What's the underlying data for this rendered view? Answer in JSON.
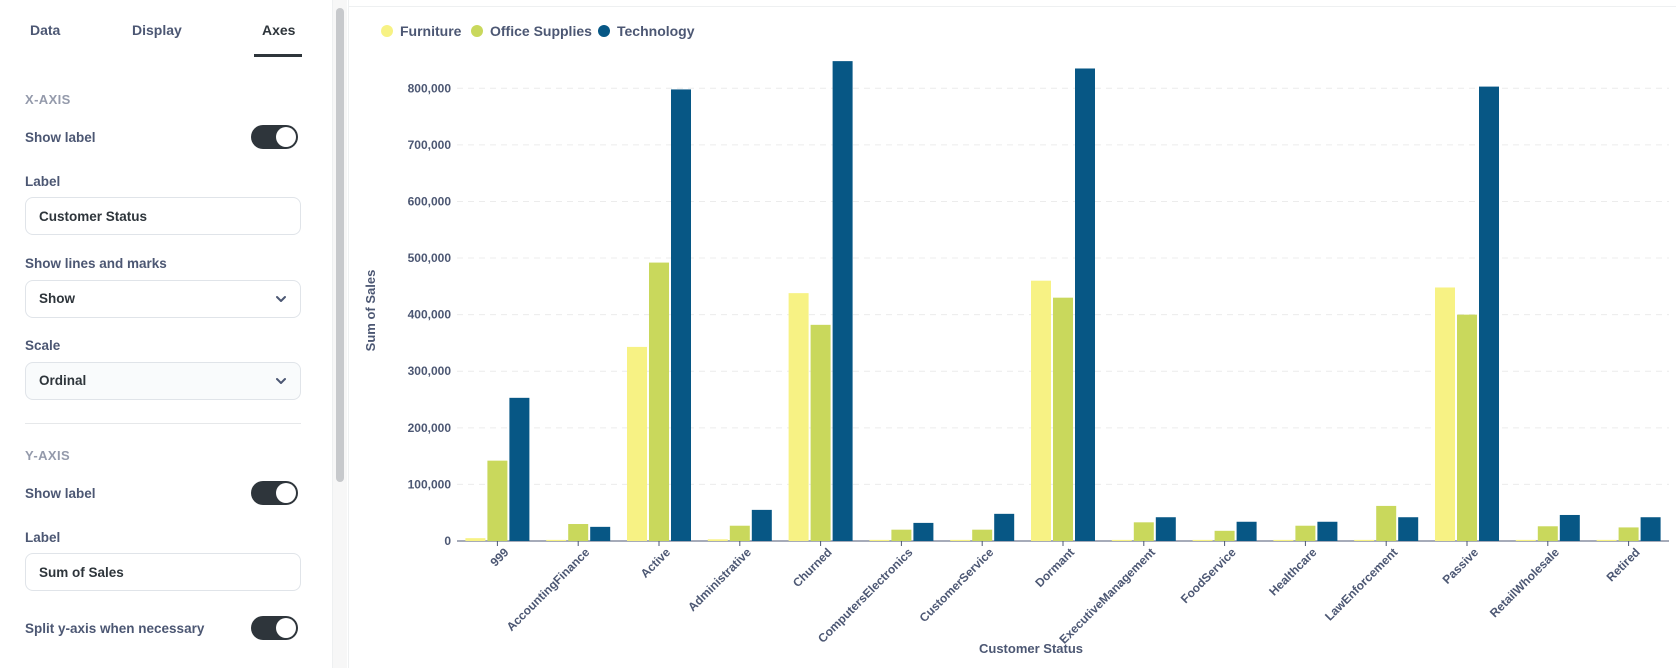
{
  "sidebar": {
    "tabs": [
      {
        "label": "Data"
      },
      {
        "label": "Display"
      },
      {
        "label": "Axes"
      }
    ],
    "x_axis": {
      "section_title": "X-AXIS",
      "show_label_text": "Show label",
      "show_label_on": true,
      "label_field_title": "Label",
      "label_value": "Customer Status",
      "lines_marks_title": "Show lines and marks",
      "lines_marks_value": "Show",
      "scale_title": "Scale",
      "scale_value": "Ordinal"
    },
    "y_axis": {
      "section_title": "Y-AXIS",
      "show_label_text": "Show label",
      "show_label_on": true,
      "label_field_title": "Label",
      "label_value": "Sum of Sales",
      "split_text": "Split y-axis when necessary",
      "split_on": true
    }
  },
  "chart_data": {
    "type": "bar",
    "categories": [
      "999",
      "AccountingFinance",
      "Active",
      "Administrative",
      "Churned",
      "ComputersElectronics",
      "CustomerService",
      "Dormant",
      "ExecutiveManagement",
      "FoodService",
      "Healthcare",
      "LawEnforcement",
      "Passive",
      "RetailWholesale",
      "Retired"
    ],
    "series": [
      {
        "name": "Furniture",
        "color": "#f7f284",
        "values": [
          5000,
          2000,
          343000,
          3000,
          438000,
          2000,
          2000,
          460000,
          2000,
          2000,
          2000,
          2000,
          448000,
          2000,
          2000
        ]
      },
      {
        "name": "Office Supplies",
        "color": "#c9d85c",
        "values": [
          142000,
          30000,
          492000,
          27000,
          382000,
          20000,
          20000,
          430000,
          33000,
          18000,
          27000,
          62000,
          400000,
          26000,
          24000
        ]
      },
      {
        "name": "Technology",
        "color": "#075785",
        "values": [
          253000,
          25000,
          798000,
          55000,
          848000,
          32000,
          48000,
          835000,
          42000,
          34000,
          34000,
          42000,
          803000,
          46000,
          42000
        ]
      }
    ],
    "xlabel": "Customer Status",
    "ylabel": "Sum of Sales",
    "ylim": [
      0,
      850000
    ],
    "yticks": [
      0,
      100000,
      200000,
      300000,
      400000,
      500000,
      600000,
      700000,
      800000
    ],
    "ytick_labels": [
      "0",
      "100,000",
      "200,000",
      "300,000",
      "400,000",
      "500,000",
      "600,000",
      "700,000",
      "800,000"
    ],
    "grid": true,
    "legend_position": "top-left"
  }
}
